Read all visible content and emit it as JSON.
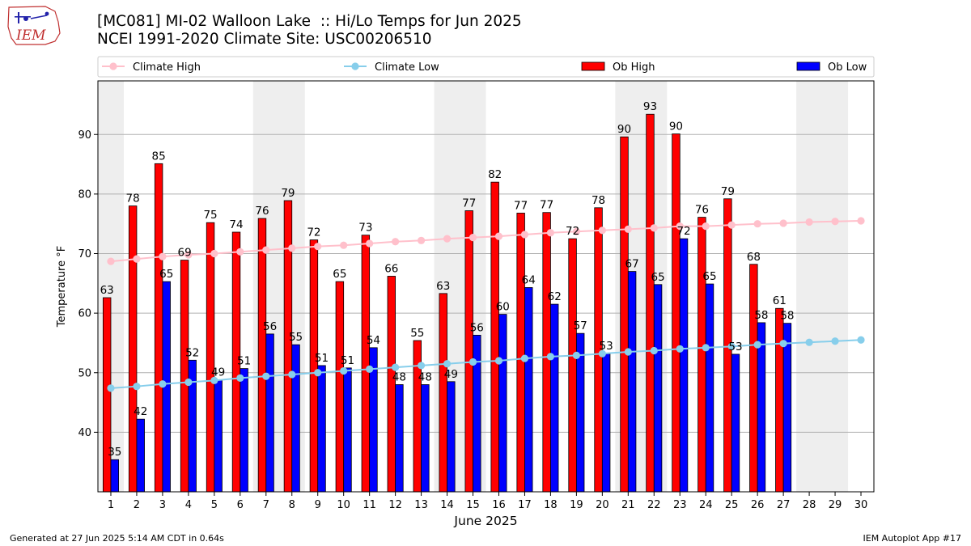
{
  "header": {
    "title_line1": "[MC081] MI-02 Walloon Lake  :: Hi/Lo Temps for Jun 2025",
    "title_line2": "NCEI 1991-2020 Climate Site: USC00206510",
    "logo_text": "IEM"
  },
  "footer": {
    "left": "Generated at 27 Jun 2025 5:14 AM CDT in 0.64s",
    "right": "IEM Autoplot App #17"
  },
  "colors": {
    "climate_high": "#ffc0cb",
    "climate_low": "#87ceeb",
    "ob_high": "#ff0000",
    "ob_low": "#0000ff",
    "weekend_band": "#eeeeee",
    "grid": "#b0b0b0"
  },
  "chart_data": {
    "type": "bar",
    "xlabel": "June 2025",
    "ylabel": "Temperature °F",
    "ylim": [
      30,
      99
    ],
    "yticks": [
      40,
      50,
      60,
      70,
      80,
      90
    ],
    "grid": "horizontal",
    "legend_placement": "top",
    "days": [
      1,
      2,
      3,
      4,
      5,
      6,
      7,
      8,
      9,
      10,
      11,
      12,
      13,
      14,
      15,
      16,
      17,
      18,
      19,
      20,
      21,
      22,
      23,
      24,
      25,
      26,
      27,
      28,
      29,
      30
    ],
    "weekend_spans": [
      [
        1,
        1
      ],
      [
        7,
        8
      ],
      [
        14,
        15
      ],
      [
        21,
        22
      ],
      [
        28,
        29
      ]
    ],
    "series": [
      {
        "name": "Ob High",
        "kind": "bar",
        "values": [
          62.6,
          78,
          85.1,
          68.9,
          75.2,
          73.6,
          75.9,
          78.9,
          72.3,
          65.3,
          73.1,
          66.2,
          55.4,
          63.3,
          77.2,
          82,
          76.8,
          76.9,
          72.5,
          77.7,
          89.6,
          93.4,
          90.1,
          76.1,
          79.2,
          68.2,
          60.8
        ],
        "labels": [
          "63",
          "78",
          "85",
          "69",
          "75",
          "74",
          "76",
          "79",
          "72",
          "65",
          "73",
          "66",
          "55",
          "63",
          "77",
          "82",
          "77",
          "77",
          "72",
          "78",
          "90",
          "93",
          "90",
          "76",
          "79",
          "68",
          "61"
        ]
      },
      {
        "name": "Ob Low",
        "kind": "bar",
        "values": [
          35.4,
          42.2,
          65.3,
          52.1,
          48.8,
          50.7,
          56.5,
          54.7,
          51.2,
          50.8,
          54.2,
          48,
          48,
          48.5,
          56.3,
          59.8,
          64.3,
          61.5,
          56.6,
          53.2,
          67,
          64.8,
          72.5,
          64.9,
          53.1,
          58.4,
          58.3
        ],
        "labels": [
          "35",
          "42",
          "65",
          "52",
          "49",
          "51",
          "56",
          "55",
          "51",
          "51",
          "54",
          "48",
          "48",
          "49",
          "56",
          "60",
          "64",
          "62",
          "57",
          "53",
          "67",
          "65",
          "72",
          "65",
          "53",
          "58",
          "58"
        ]
      },
      {
        "name": "Climate High",
        "kind": "line",
        "values": [
          68.7,
          69.1,
          69.5,
          69.8,
          70,
          70.3,
          70.6,
          70.9,
          71.2,
          71.4,
          71.7,
          72,
          72.2,
          72.5,
          72.7,
          72.9,
          73.2,
          73.5,
          73.7,
          73.9,
          74.1,
          74.3,
          74.6,
          74.6,
          74.8,
          75,
          75.1,
          75.3,
          75.4,
          75.5
        ]
      },
      {
        "name": "Climate Low",
        "kind": "line",
        "values": [
          47.4,
          47.7,
          48.1,
          48.4,
          48.7,
          49.1,
          49.4,
          49.7,
          50,
          50.3,
          50.6,
          50.9,
          51.2,
          51.5,
          51.8,
          52,
          52.4,
          52.7,
          52.9,
          53.2,
          53.5,
          53.7,
          54,
          54.2,
          54.4,
          54.7,
          54.9,
          55.1,
          55.3,
          55.5
        ]
      }
    ]
  }
}
